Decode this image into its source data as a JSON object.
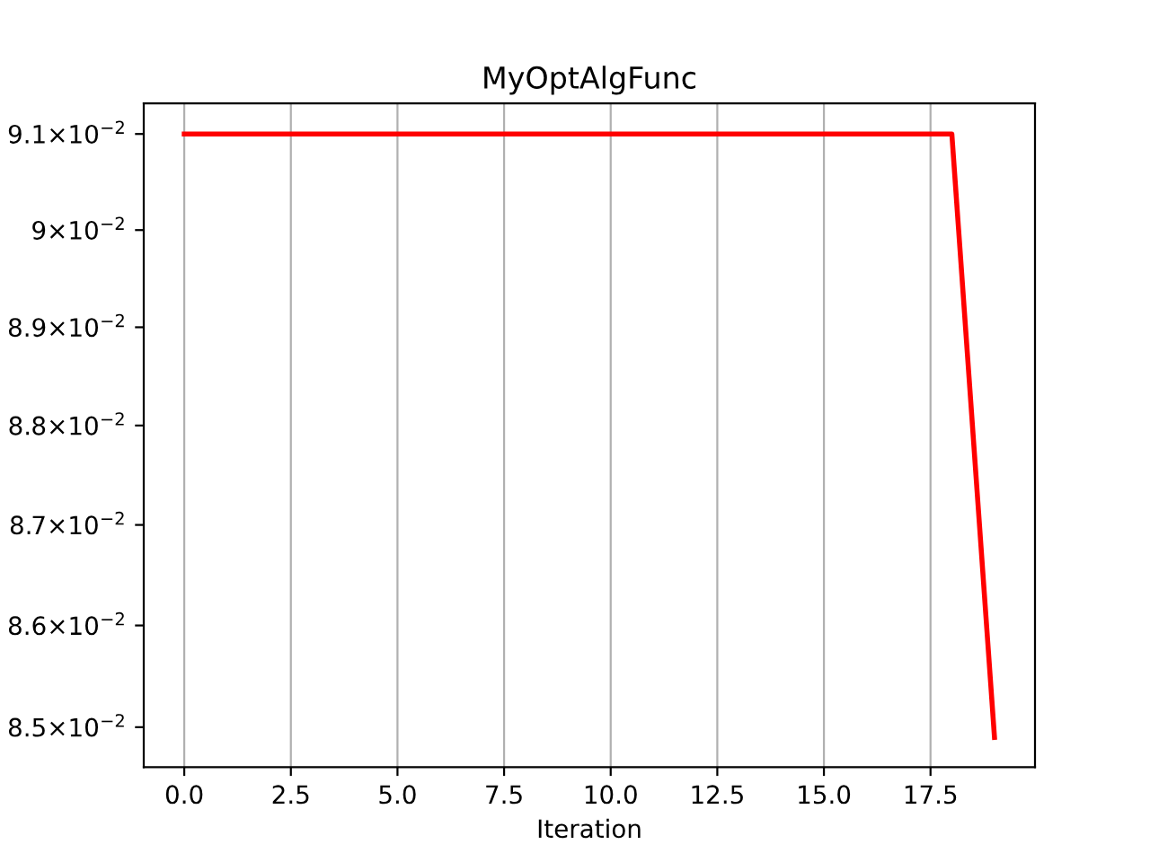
{
  "chart_data": {
    "type": "line",
    "title": "MyOptAlgFunc",
    "xlabel": "Iteration",
    "x": [
      0,
      1,
      2,
      3,
      4,
      5,
      6,
      7,
      8,
      9,
      10,
      11,
      12,
      13,
      14,
      15,
      16,
      17,
      18,
      19
    ],
    "series": [
      {
        "color": "#ff0000",
        "values": [
          0.091,
          0.091,
          0.091,
          0.091,
          0.091,
          0.091,
          0.091,
          0.091,
          0.091,
          0.091,
          0.091,
          0.091,
          0.091,
          0.091,
          0.091,
          0.091,
          0.091,
          0.091,
          0.091,
          0.0849
        ]
      }
    ],
    "log": "y",
    "grid": "x",
    "line_style": "solid",
    "marker": "none",
    "xlim": [
      -0.95,
      19.95
    ],
    "xticks": [
      {
        "value": 0,
        "label": "0.0"
      },
      {
        "value": 2.5,
        "label": "2.5"
      },
      {
        "value": 5,
        "label": "5.0"
      },
      {
        "value": 7.5,
        "label": "7.5"
      },
      {
        "value": 10,
        "label": "10.0"
      },
      {
        "value": 12.5,
        "label": "12.5"
      },
      {
        "value": 15,
        "label": "15.0"
      },
      {
        "value": 17.5,
        "label": "17.5"
      }
    ],
    "ylim": [
      0.08461,
      0.09132
    ],
    "yticks": [
      {
        "value": 0.085,
        "label": "8.5×10$^{−2}$"
      },
      {
        "value": 0.086,
        "label": "8.6×10$^{−2}$"
      },
      {
        "value": 0.087,
        "label": "8.7×10$^{−2}$"
      },
      {
        "value": 0.088,
        "label": "8.8×10$^{−2}$"
      },
      {
        "value": 0.089,
        "label": "8.9×10$^{−2}$"
      },
      {
        "value": 0.09,
        "label": "9×10$^{−2}$"
      },
      {
        "value": 0.091,
        "label": "9.1×10$^{−2}$"
      }
    ]
  }
}
